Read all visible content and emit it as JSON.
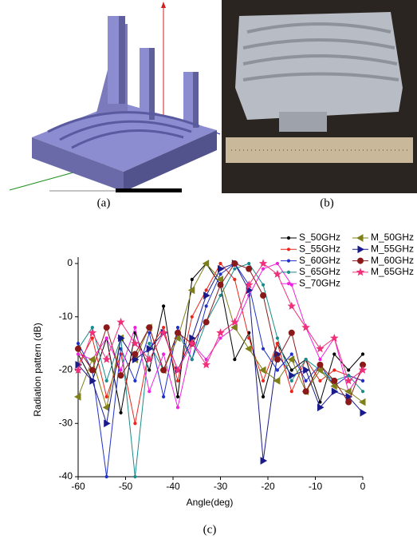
{
  "panels": {
    "a": "(a)",
    "b": "(b)",
    "c": "(c)"
  },
  "chart_data": {
    "type": "line",
    "xlabel": "Angle(deg)",
    "ylabel": "Radiation pattern (dB)",
    "x": [
      -60,
      -57,
      -54,
      -51,
      -48,
      -45,
      -42,
      -39,
      -36,
      -33,
      -30,
      -27,
      -24,
      -21,
      -18,
      -15,
      -12,
      -9,
      -6,
      -3,
      0
    ],
    "xlim": [
      -60,
      0
    ],
    "xticks": [
      -60,
      -50,
      -40,
      -30,
      -20,
      -10,
      0
    ],
    "ylim": [
      -40,
      0
    ],
    "yticks": [
      0,
      -10,
      -20,
      -30,
      -40
    ],
    "legend": "upper right",
    "series": [
      {
        "name": "S_50GHz",
        "color": "#000000",
        "marker": "dot",
        "values": [
          -17,
          -22,
          -14,
          -28,
          -13,
          -20,
          -8,
          -25,
          -3,
          0,
          -4,
          -18,
          -13,
          -25,
          -15,
          -20,
          -18,
          -26,
          -17,
          -20,
          -17
        ]
      },
      {
        "name": "S_55GHz",
        "color": "#e8261c",
        "marker": "dot",
        "values": [
          -19,
          -14,
          -25,
          -17,
          -30,
          -16,
          -12,
          -22,
          -10,
          -5,
          0,
          -3,
          -14,
          -22,
          -15,
          -24,
          -18,
          -22,
          -20,
          -21,
          -22
        ]
      },
      {
        "name": "S_60GHz",
        "color": "#2030c8",
        "marker": "dot",
        "values": [
          -15,
          -20,
          -40,
          -16,
          -22,
          -13,
          -25,
          -12,
          -18,
          -8,
          -2,
          0,
          -4,
          -16,
          -20,
          -17,
          -22,
          -19,
          -23,
          -21,
          -22
        ]
      },
      {
        "name": "S_65GHz",
        "color": "#1a8a8a",
        "marker": "dot",
        "values": [
          -16,
          -12,
          -22,
          -14,
          -40,
          -15,
          -20,
          -13,
          -18,
          -11,
          -6,
          -1,
          0,
          -4,
          -14,
          -22,
          -18,
          -20,
          -22,
          -21,
          -24
        ]
      },
      {
        "name": "S_70GHz",
        "color": "#ee22dd",
        "marker": "dot",
        "values": [
          -17,
          -18,
          -14,
          -20,
          -12,
          -24,
          -17,
          -27,
          -15,
          -18,
          -14,
          -12,
          -6,
          -1,
          0,
          -4,
          -12,
          -18,
          -14,
          -24,
          -20
        ]
      },
      {
        "name": "M_50GHz",
        "color": "#7f7f1a",
        "marker": "tri-left",
        "values": [
          -25,
          -18,
          -27,
          -14,
          -18,
          -12,
          -20,
          -14,
          -5,
          0,
          -3,
          -12,
          -16,
          -20,
          -22,
          -18,
          -24,
          -20,
          -23,
          -24,
          -26
        ]
      },
      {
        "name": "M_55GHz",
        "color": "#1a1a8a",
        "marker": "tri-right",
        "values": [
          -19,
          -22,
          -30,
          -14,
          -18,
          -16,
          -13,
          -20,
          -14,
          -6,
          -1,
          0,
          -5,
          -37,
          -17,
          -21,
          -20,
          -27,
          -24,
          -25,
          -28
        ]
      },
      {
        "name": "M_60GHz",
        "color": "#8a1a1a",
        "marker": "circle",
        "values": [
          -16,
          -20,
          -12,
          -21,
          -17,
          -12,
          -20,
          -13,
          -15,
          -11,
          -4,
          0,
          -1,
          -6,
          -18,
          -13,
          -24,
          -19,
          -22,
          -26,
          -19
        ]
      },
      {
        "name": "M_65GHz",
        "color": "#f0307a",
        "marker": "star",
        "values": [
          -20,
          -13,
          -18,
          -11,
          -15,
          -18,
          -13,
          -20,
          -15,
          -19,
          -13,
          -11,
          -4,
          0,
          -2,
          -8,
          -12,
          -16,
          -14,
          -22,
          -20
        ]
      }
    ]
  }
}
